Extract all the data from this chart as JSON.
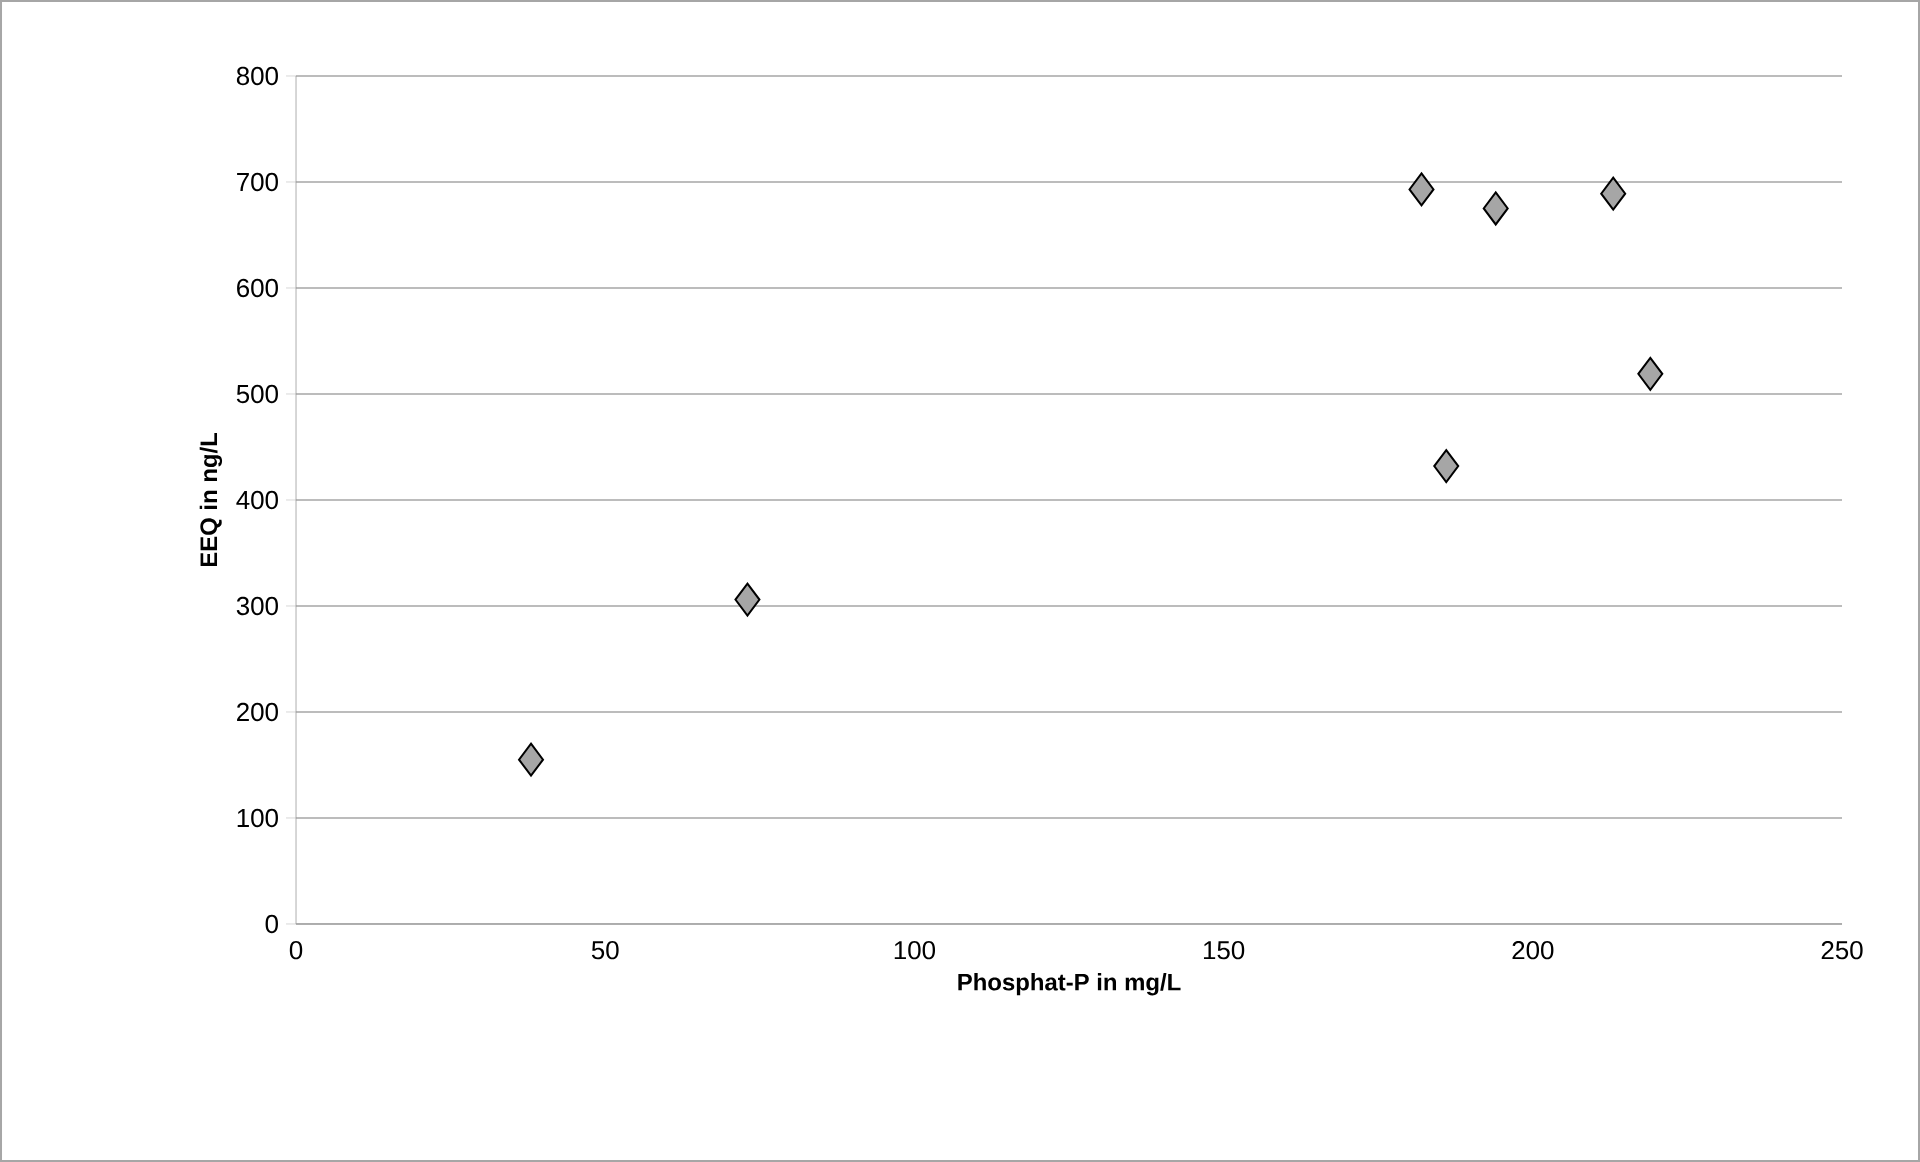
{
  "chart_data": {
    "type": "scatter",
    "xlabel": "Phosphat-P in mg/L",
    "ylabel": "EEQ in ng/L",
    "x": [
      38,
      73,
      182,
      194,
      213,
      186,
      219
    ],
    "values": [
      155,
      306,
      693,
      675,
      689,
      432,
      519
    ],
    "color": "#a6a6a6",
    "marker": "diamond",
    "xlim": [
      0,
      250
    ],
    "xticks": [
      0,
      50,
      100,
      150,
      200,
      250
    ],
    "ylim": [
      0,
      800
    ],
    "yticks": [
      0,
      100,
      200,
      300,
      400,
      500,
      600,
      700,
      800
    ],
    "grid": "y"
  }
}
